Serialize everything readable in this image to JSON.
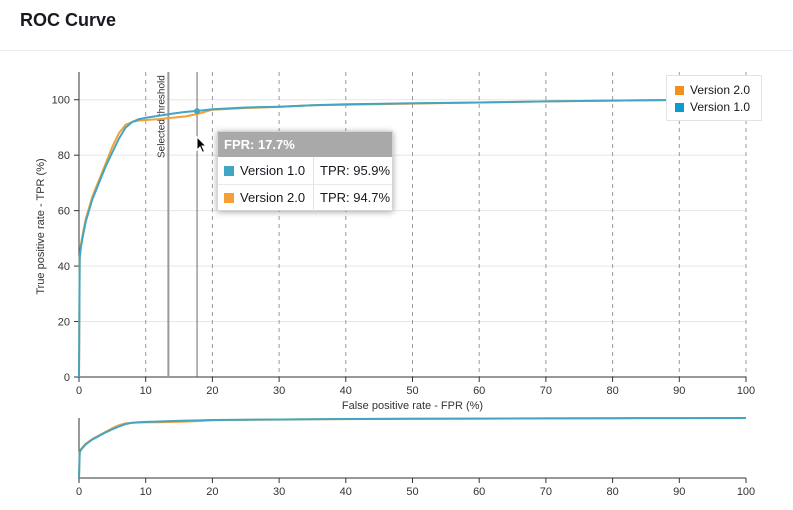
{
  "page": {
    "title": "ROC Curve"
  },
  "tooltip": {
    "header": "FPR: 17.7%",
    "rows": [
      {
        "name": "Version 1.0",
        "value": "TPR: 95.9%",
        "color": "#41a6c4"
      },
      {
        "name": "Version 2.0",
        "value": "TPR: 94.7%",
        "color": "#f5a036"
      }
    ]
  },
  "legend": [
    {
      "name": "Version 2.0",
      "color": "#f58f1b"
    },
    {
      "name": "Version 1.0",
      "color": "#0c9bca"
    }
  ],
  "threshold_label": "Selected threshold",
  "chart_data": [
    {
      "type": "line",
      "title": "ROC Curve",
      "xlabel": "False positive rate - FPR (%)",
      "ylabel": "True positive rate - TPR (%)",
      "xlim": [
        0,
        100
      ],
      "ylim": [
        0,
        110
      ],
      "x_ticks": [
        "0",
        "10",
        "20",
        "30",
        "40",
        "50",
        "60",
        "70",
        "80",
        "90",
        "100"
      ],
      "y_ticks": [
        "0",
        "20",
        "40",
        "60",
        "80",
        "100"
      ],
      "vertical_gridlines": "dashed",
      "horizontal_gridlines": "solid",
      "legend_position": "top-right",
      "selected_threshold_fpr": 13.4,
      "hover_fpr": 17.7,
      "series": [
        {
          "name": "Version 2.0",
          "color": "#f5a036",
          "x": [
            0,
            0.1,
            0.3,
            0.6,
            1,
            1.5,
            2,
            3,
            4,
            5,
            6,
            7,
            8,
            9,
            10,
            12,
            14,
            16,
            18,
            20,
            25,
            30,
            35,
            40,
            50,
            60,
            70,
            80,
            90,
            100
          ],
          "y": [
            0,
            43,
            48,
            52,
            57,
            61,
            65,
            71,
            77,
            83,
            88,
            91,
            92,
            92.5,
            92.7,
            93,
            93.5,
            94,
            95,
            96.4,
            97,
            97.4,
            98,
            98.2,
            98.6,
            99,
            99.4,
            99.7,
            99.9,
            100
          ]
        },
        {
          "name": "Version 1.0",
          "color": "#41a6c4",
          "x": [
            0,
            0.1,
            0.3,
            0.6,
            1,
            1.5,
            2,
            3,
            4,
            5,
            6,
            7,
            8,
            9,
            10,
            12,
            14,
            16,
            18,
            20,
            25,
            30,
            35,
            40,
            50,
            60,
            70,
            80,
            90,
            100
          ],
          "y": [
            0,
            43,
            47,
            51,
            56,
            60,
            64,
            70,
            76,
            81,
            86,
            90,
            92,
            93,
            93.5,
            94.2,
            95,
            95.6,
            96,
            96.6,
            97.2,
            97.5,
            98,
            98.4,
            98.7,
            99,
            99.4,
            99.7,
            99.9,
            100
          ]
        }
      ]
    },
    {
      "type": "line",
      "title": "",
      "xlim": [
        0,
        100
      ],
      "ylim": [
        0,
        110
      ],
      "x_ticks": [
        "0",
        "10",
        "20",
        "30",
        "40",
        "50",
        "60",
        "70",
        "80",
        "90",
        "100"
      ]
    }
  ]
}
